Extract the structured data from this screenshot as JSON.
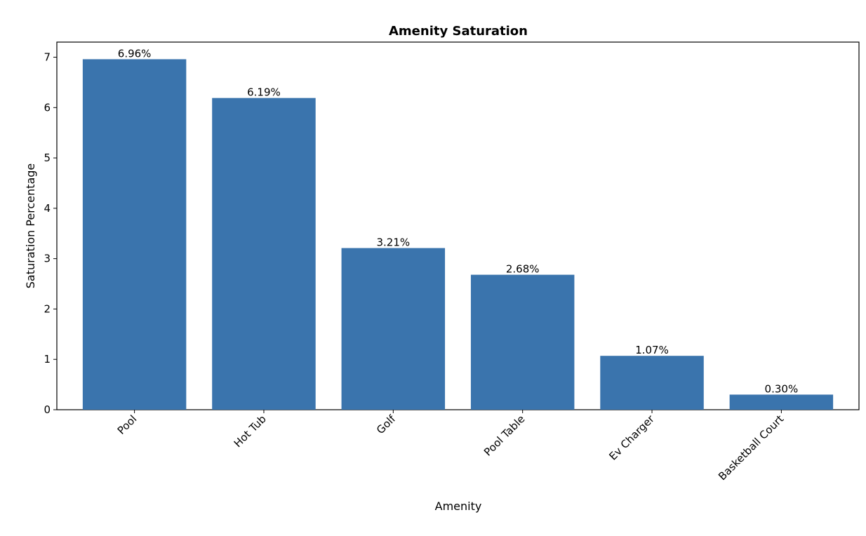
{
  "chart_data": {
    "type": "bar",
    "title": "Amenity Saturation",
    "xlabel": "Amenity",
    "ylabel": "Saturation Percentage",
    "categories": [
      "Pool",
      "Hot Tub",
      "Golf",
      "Pool Table",
      "Ev Charger",
      "Basketball Court"
    ],
    "values": [
      6.96,
      6.19,
      3.21,
      2.68,
      1.07,
      0.3
    ],
    "value_labels": [
      "6.96%",
      "6.19%",
      "3.21%",
      "2.68%",
      "1.07%",
      "0.30%"
    ],
    "ylim": [
      0,
      7.3
    ],
    "yticks": [
      0,
      1,
      2,
      3,
      4,
      5,
      6,
      7
    ],
    "bar_color": "#3a74ad",
    "grid": false,
    "legend": "none"
  }
}
